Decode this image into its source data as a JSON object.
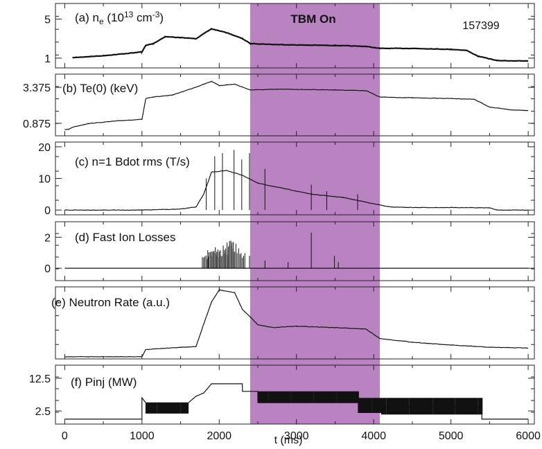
{
  "figure": {
    "shot_label": "157399",
    "highlight_label": "TBM On",
    "highlight_color": "#b883c0",
    "xlabel": "t (ms)",
    "x_ticks": [
      "0",
      "1000",
      "2000",
      "3000",
      "4000",
      "5000",
      "6000"
    ]
  },
  "chart_data": [
    {
      "type": "line",
      "id": "a",
      "title_parts": [
        "(a) n",
        "e",
        " (10",
        "13",
        " cm",
        "-3",
        ")"
      ],
      "xlim": [
        -120,
        6080
      ],
      "ylim": [
        0,
        6.6
      ],
      "y_ticks": [
        {
          "label": "5",
          "value": 5
        },
        {
          "label": "1",
          "value": 1
        }
      ],
      "highlight": [
        2400,
        4080
      ],
      "points": [
        [
          100,
          1.05
        ],
        [
          500,
          1.25
        ],
        [
          900,
          1.55
        ],
        [
          1000,
          1.65
        ],
        [
          1050,
          2.3
        ],
        [
          1150,
          2.5
        ],
        [
          1300,
          3.2
        ],
        [
          1500,
          3.1
        ],
        [
          1700,
          3.0
        ],
        [
          1900,
          4.0
        ],
        [
          2100,
          3.6
        ],
        [
          2300,
          3.0
        ],
        [
          2400,
          2.5
        ],
        [
          2700,
          2.4
        ],
        [
          3000,
          2.35
        ],
        [
          3500,
          2.3
        ],
        [
          3900,
          2.2
        ],
        [
          4080,
          2.0
        ],
        [
          4500,
          2.0
        ],
        [
          5000,
          1.9
        ],
        [
          5200,
          1.8
        ],
        [
          5350,
          1.2
        ],
        [
          5600,
          0.75
        ],
        [
          6000,
          0.7
        ]
      ]
    },
    {
      "type": "line",
      "id": "b",
      "title_parts": [
        "(b) Te(0) (keV)"
      ],
      "xlim": [
        -120,
        6080
      ],
      "ylim": [
        0,
        4.3
      ],
      "y_ticks": [
        {
          "label": "3.375",
          "value": 3.375
        },
        {
          "label": "0.875",
          "value": 0.875
        }
      ],
      "points": [
        [
          0,
          0.45
        ],
        [
          50,
          0.45
        ],
        [
          100,
          0.6
        ],
        [
          300,
          0.85
        ],
        [
          700,
          1.05
        ],
        [
          1000,
          1.15
        ],
        [
          1050,
          2.6
        ],
        [
          1150,
          2.7
        ],
        [
          1400,
          2.85
        ],
        [
          1700,
          3.4
        ],
        [
          1800,
          3.6
        ],
        [
          1900,
          3.8
        ],
        [
          2000,
          3.5
        ],
        [
          2200,
          3.6
        ],
        [
          2400,
          3.2
        ],
        [
          2800,
          3.25
        ],
        [
          3500,
          3.2
        ],
        [
          3900,
          3.15
        ],
        [
          4080,
          2.7
        ],
        [
          4500,
          2.65
        ],
        [
          5000,
          2.6
        ],
        [
          5300,
          2.55
        ],
        [
          5500,
          2.0
        ],
        [
          5800,
          1.8
        ],
        [
          6000,
          1.75
        ]
      ]
    },
    {
      "type": "line",
      "id": "c",
      "title_parts": [
        "(c) n=1 Bdot rms (T/s)"
      ],
      "xlim": [
        -120,
        6080
      ],
      "ylim": [
        -1.5,
        21.5
      ],
      "y_ticks": [
        {
          "label": "20",
          "value": 20
        },
        {
          "label": "10",
          "value": 10
        },
        {
          "label": "0",
          "value": 0
        }
      ],
      "points": [
        [
          0,
          0
        ],
        [
          1000,
          0
        ],
        [
          1500,
          0.3
        ],
        [
          1700,
          1.0
        ],
        [
          1800,
          5.0
        ],
        [
          1900,
          12.0
        ],
        [
          2100,
          12.5
        ],
        [
          2300,
          11.0
        ],
        [
          2500,
          8.5
        ],
        [
          2800,
          7.0
        ],
        [
          3200,
          5.0
        ],
        [
          3600,
          4.0
        ],
        [
          4000,
          2.0
        ],
        [
          4200,
          1.0
        ],
        [
          4500,
          0.8
        ],
        [
          5000,
          0.8
        ],
        [
          5500,
          0.7
        ],
        [
          5600,
          0
        ],
        [
          6000,
          0
        ]
      ],
      "spikes": [
        [
          1840,
          10
        ],
        [
          1950,
          17
        ],
        [
          2050,
          18
        ],
        [
          2200,
          19
        ],
        [
          2300,
          16
        ],
        [
          2400,
          18
        ],
        [
          2600,
          13
        ],
        [
          3200,
          8
        ],
        [
          3400,
          6
        ],
        [
          3800,
          5
        ]
      ]
    },
    {
      "type": "line",
      "id": "d",
      "title_parts": [
        "(d) Fast Ion Losses"
      ],
      "xlim": [
        -120,
        6080
      ],
      "ylim": [
        -0.8,
        3.0
      ],
      "y_ticks": [
        {
          "label": "2",
          "value": 2
        },
        {
          "label": "0",
          "value": 0
        }
      ],
      "points": [
        [
          0,
          0
        ],
        [
          6000,
          0
        ]
      ],
      "spikes": [
        [
          1830,
          0.9
        ],
        [
          1900,
          1.2
        ],
        [
          1950,
          1.4
        ],
        [
          2000,
          1.4
        ],
        [
          2050,
          1.5
        ],
        [
          2100,
          1.6
        ],
        [
          2150,
          1.8
        ],
        [
          2200,
          1.7
        ],
        [
          2300,
          1.3
        ],
        [
          2400,
          0.8
        ],
        [
          2600,
          0.5
        ],
        [
          2900,
          0.4
        ],
        [
          3200,
          2.3
        ],
        [
          3500,
          0.8
        ],
        [
          3550,
          0.4
        ]
      ]
    },
    {
      "type": "line",
      "id": "e",
      "title_parts": [
        "(e) Neutron Rate (a.u.)"
      ],
      "xlim": [
        -120,
        6080
      ],
      "ylim": [
        -0.3,
        9.6
      ],
      "y_ticks": [],
      "points": [
        [
          0,
          0
        ],
        [
          1000,
          0
        ],
        [
          1050,
          1.0
        ],
        [
          1500,
          1.3
        ],
        [
          1700,
          1.4
        ],
        [
          1800,
          4.5
        ],
        [
          1900,
          7.5
        ],
        [
          2000,
          9.2
        ],
        [
          2200,
          8.8
        ],
        [
          2300,
          6.5
        ],
        [
          2400,
          5.5
        ],
        [
          2500,
          4.4
        ],
        [
          2700,
          4.0
        ],
        [
          3000,
          4.2
        ],
        [
          3500,
          4.0
        ],
        [
          3900,
          3.8
        ],
        [
          4080,
          2.5
        ],
        [
          4500,
          2.0
        ],
        [
          5000,
          1.6
        ],
        [
          5500,
          1.3
        ],
        [
          6000,
          1.2
        ]
      ]
    },
    {
      "type": "line",
      "id": "f",
      "title_parts": [
        "(f) Pinj (MW)"
      ],
      "xlim": [
        -120,
        6080
      ],
      "ylim": [
        -1.5,
        16.5
      ],
      "y_ticks": [
        {
          "label": "12.5",
          "value": 12.5
        },
        {
          "label": "2.5",
          "value": 2.5
        }
      ],
      "points": [
        [
          0,
          0
        ],
        [
          1000,
          0
        ],
        [
          1000,
          6.5
        ],
        [
          1050,
          5.0
        ],
        [
          1600,
          5.0
        ],
        [
          1700,
          7.0
        ],
        [
          1800,
          8.0
        ],
        [
          1900,
          10.8
        ],
        [
          2300,
          10.8
        ],
        [
          2300,
          8.5
        ],
        [
          2400,
          8.5
        ],
        [
          2500,
          8.5
        ],
        [
          2500,
          5.5
        ],
        [
          3800,
          5.5
        ],
        [
          4000,
          4.5
        ],
        [
          4100,
          3.5
        ],
        [
          5400,
          3.5
        ],
        [
          5400,
          0
        ],
        [
          6000,
          0
        ]
      ],
      "switching": [
        [
          1050,
          1600,
          5.0,
          1.8
        ],
        [
          2500,
          3800,
          8.5,
          5.0
        ],
        [
          3800,
          4100,
          6.5,
          2.0
        ],
        [
          4100,
          5400,
          6.5,
          1.5
        ]
      ]
    }
  ]
}
